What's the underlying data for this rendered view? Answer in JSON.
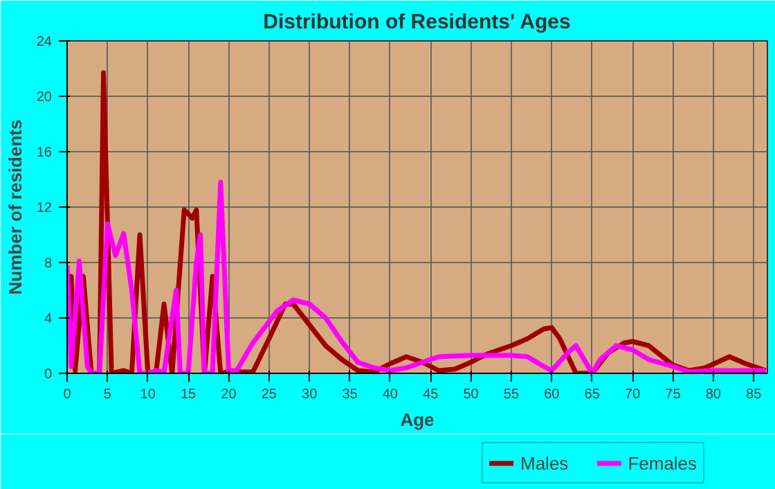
{
  "chart_data": {
    "type": "line",
    "title": "Distribution of Residents' Ages",
    "xlabel": "Age",
    "ylabel": "Number of residents",
    "xlim": [
      0,
      86.7
    ],
    "xticks": [
      0,
      5,
      10,
      15,
      20,
      25,
      30,
      35,
      40,
      45,
      50,
      55,
      60,
      65,
      70,
      75,
      80,
      85
    ],
    "ylim": [
      0,
      24
    ],
    "yticks": [
      0,
      4,
      8,
      12,
      16,
      20,
      24
    ],
    "grid": true,
    "legend": "bottom",
    "marker": "none",
    "line_style": "solid",
    "series": [
      {
        "name": "Males",
        "color": "#a00000",
        "x": [
          0,
          0.5,
          1,
          2,
          3,
          4,
          4.5,
          5.5,
          7,
          8,
          9,
          10,
          11,
          12,
          13,
          14.5,
          15.5,
          16,
          17,
          18,
          19,
          20,
          22,
          23,
          25,
          27,
          28,
          30,
          32,
          34,
          36,
          38,
          40,
          42,
          44,
          46,
          48,
          50,
          52,
          55,
          57,
          59,
          60,
          61,
          63,
          65,
          67,
          69,
          70,
          72,
          75,
          77,
          79,
          82,
          84,
          86.5
        ],
        "values": [
          7,
          7,
          0.2,
          7,
          0,
          0,
          21.7,
          0,
          0.2,
          0,
          10,
          0,
          0,
          5,
          0,
          11.8,
          11.2,
          11.8,
          0,
          7,
          0,
          0.1,
          0.1,
          0.1,
          2.5,
          5,
          5,
          3.5,
          2,
          1,
          0.2,
          0.1,
          0.7,
          1.2,
          0.8,
          0.2,
          0.3,
          0.8,
          1.4,
          2,
          2.5,
          3.2,
          3.3,
          2.5,
          0,
          0,
          1.5,
          2.2,
          2.3,
          2,
          0.6,
          0.2,
          0.4,
          1.2,
          0.7,
          0.2
        ]
      },
      {
        "name": "Females",
        "color": "#ff00ff",
        "x": [
          0,
          0.5,
          1.5,
          2.5,
          3,
          4,
          5,
          6,
          7,
          8,
          9,
          10,
          11,
          12,
          13.5,
          14,
          15,
          16,
          16.5,
          17,
          18,
          19,
          20,
          21,
          23,
          26,
          28,
          30,
          32,
          34,
          36,
          38,
          40,
          42,
          44,
          46,
          50,
          55,
          57,
          59,
          60,
          62,
          63,
          65,
          66,
          68,
          70,
          72,
          75,
          77,
          80,
          86.5
        ],
        "values": [
          7.8,
          0.5,
          8.1,
          0.5,
          0,
          0,
          10.8,
          8.5,
          10.1,
          6,
          0,
          0,
          0.2,
          0.1,
          6,
          0,
          0,
          8,
          10,
          0,
          0,
          13.8,
          0.2,
          0.2,
          2.2,
          4.5,
          5.3,
          5,
          4,
          2.3,
          0.8,
          0.4,
          0.2,
          0.4,
          0.8,
          1.2,
          1.3,
          1.3,
          1.2,
          0.5,
          0.2,
          1.5,
          2,
          0,
          1,
          2,
          1.7,
          1,
          0.5,
          0.1,
          0.2,
          0.2
        ]
      }
    ]
  }
}
